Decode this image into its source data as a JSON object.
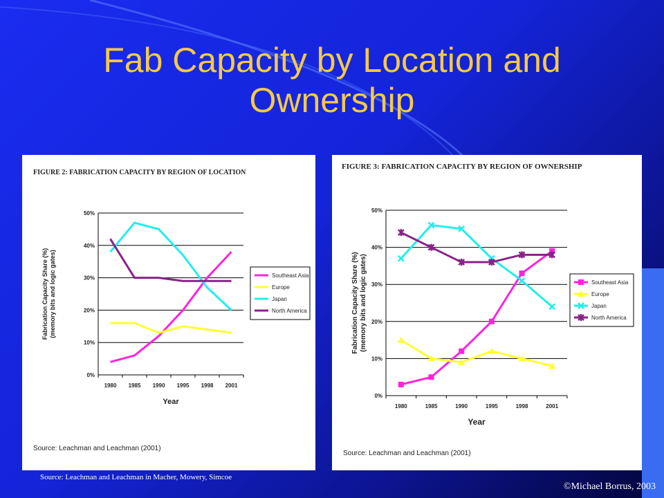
{
  "slide": {
    "title": "Fab Capacity by Location and Ownership",
    "footer_source": "Source: Leachman and Leachman in Macher, Mowery, Simcoe",
    "copyright": "©Michael Borrus, 2003",
    "colors": {
      "background": "#1424d8",
      "title": "#f6c944",
      "panel": "#ffffff"
    }
  },
  "chart_data": [
    {
      "type": "line",
      "title": "FIGURE 2: FABRICATION CAPACITY BY REGION OF LOCATION",
      "xlabel": "Year",
      "ylabel": "Fabrication Capacity Share (%) (memory bits and logic gates)",
      "categories": [
        "1980",
        "1985",
        "1990",
        "1995",
        "1998",
        "2001"
      ],
      "ylim": [
        0,
        50
      ],
      "yticks": [
        "0%",
        "10%",
        "20%",
        "30%",
        "40%",
        "50%"
      ],
      "grid": true,
      "markers": false,
      "legend": "right",
      "source": "Source: Leachman and Leachman (2001)",
      "series": [
        {
          "name": "Southeast Asia",
          "color": "#ff22dd",
          "values": [
            4,
            6,
            12,
            20,
            30,
            38
          ]
        },
        {
          "name": "Europe",
          "color": "#ffff33",
          "values": [
            16,
            16,
            13,
            15,
            14,
            13
          ]
        },
        {
          "name": "Japan",
          "color": "#22eeee",
          "values": [
            38,
            47,
            45,
            37,
            27,
            20
          ]
        },
        {
          "name": "North America",
          "color": "#882288",
          "values": [
            42,
            30,
            30,
            29,
            29,
            29
          ]
        }
      ]
    },
    {
      "type": "line",
      "title": "FIGURE 3: FABRICATION CAPACITY BY REGION OF OWNERSHIP",
      "xlabel": "Year",
      "ylabel": "Fabrication Capacity Share (%) (memory bits and logic gates)",
      "categories": [
        "1980",
        "1985",
        "1990",
        "1995",
        "1998",
        "2001"
      ],
      "ylim": [
        0,
        50
      ],
      "yticks": [
        "0%",
        "10%",
        "20%",
        "30%",
        "40%",
        "50%"
      ],
      "grid": true,
      "markers": true,
      "legend": "right",
      "source": "Source: Leachman and Leachman (2001)",
      "series": [
        {
          "name": "Southeast Asia",
          "color": "#ff22dd",
          "marker": "square",
          "values": [
            3,
            5,
            12,
            20,
            33,
            39
          ]
        },
        {
          "name": "Europe",
          "color": "#ffff33",
          "marker": "triangle",
          "values": [
            15,
            10,
            9,
            12,
            10,
            8
          ]
        },
        {
          "name": "Japan",
          "color": "#22eeee",
          "marker": "x",
          "values": [
            37,
            46,
            45,
            37,
            31,
            24
          ]
        },
        {
          "name": "North America",
          "color": "#882288",
          "marker": "star",
          "values": [
            44,
            40,
            36,
            36,
            38,
            38
          ]
        }
      ]
    }
  ]
}
